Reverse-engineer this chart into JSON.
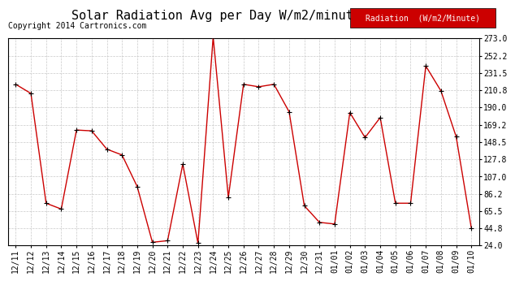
{
  "title": "Solar Radiation Avg per Day W/m2/minute 20140110",
  "copyright": "Copyright 2014 Cartronics.com",
  "legend_label": "Radiation  (W/m2/Minute)",
  "data_points": [
    [
      "12/11",
      218
    ],
    [
      "12/12",
      207
    ],
    [
      "12/13",
      75
    ],
    [
      "12/14",
      68
    ],
    [
      "12/15",
      163
    ],
    [
      "12/16",
      162
    ],
    [
      "12/17",
      140
    ],
    [
      "12/18",
      133
    ],
    [
      "12/19",
      95
    ],
    [
      "12/20",
      28
    ],
    [
      "12/21",
      30
    ],
    [
      "12/22",
      122
    ],
    [
      "12/23",
      27
    ],
    [
      "12/24",
      275
    ],
    [
      "12/25",
      82
    ],
    [
      "12/26",
      218
    ],
    [
      "12/27",
      215
    ],
    [
      "12/28",
      218
    ],
    [
      "12/29",
      185
    ],
    [
      "12/30",
      72
    ],
    [
      "12/31",
      52
    ],
    [
      "01/01",
      50
    ],
    [
      "01/02",
      184
    ],
    [
      "01/03",
      154
    ],
    [
      "01/04",
      178
    ],
    [
      "01/05",
      75
    ],
    [
      "01/06",
      75
    ],
    [
      "01/07",
      240
    ],
    [
      "01/08",
      210
    ],
    [
      "01/09",
      155
    ],
    [
      "01/10",
      45
    ]
  ],
  "ylim": [
    24.0,
    273.0
  ],
  "yticks": [
    24.0,
    44.8,
    65.5,
    86.2,
    107.0,
    127.8,
    148.5,
    169.2,
    190.0,
    210.8,
    231.5,
    252.2,
    273.0
  ],
  "ytick_labels": [
    "24.0",
    "44.8",
    "65.5",
    "86.2",
    "107.0",
    "127.8",
    "148.5",
    "169.2",
    "190.0",
    "210.8",
    "231.5",
    "252.2",
    "273.0"
  ],
  "line_color": "#cc0000",
  "marker_color": "#000000",
  "bg_color": "#ffffff",
  "grid_color": "#bbbbbb",
  "legend_bg": "#cc0000",
  "legend_text_color": "#ffffff",
  "title_fontsize": 11,
  "tick_fontsize": 7,
  "copyright_fontsize": 7,
  "legend_fontsize": 7
}
